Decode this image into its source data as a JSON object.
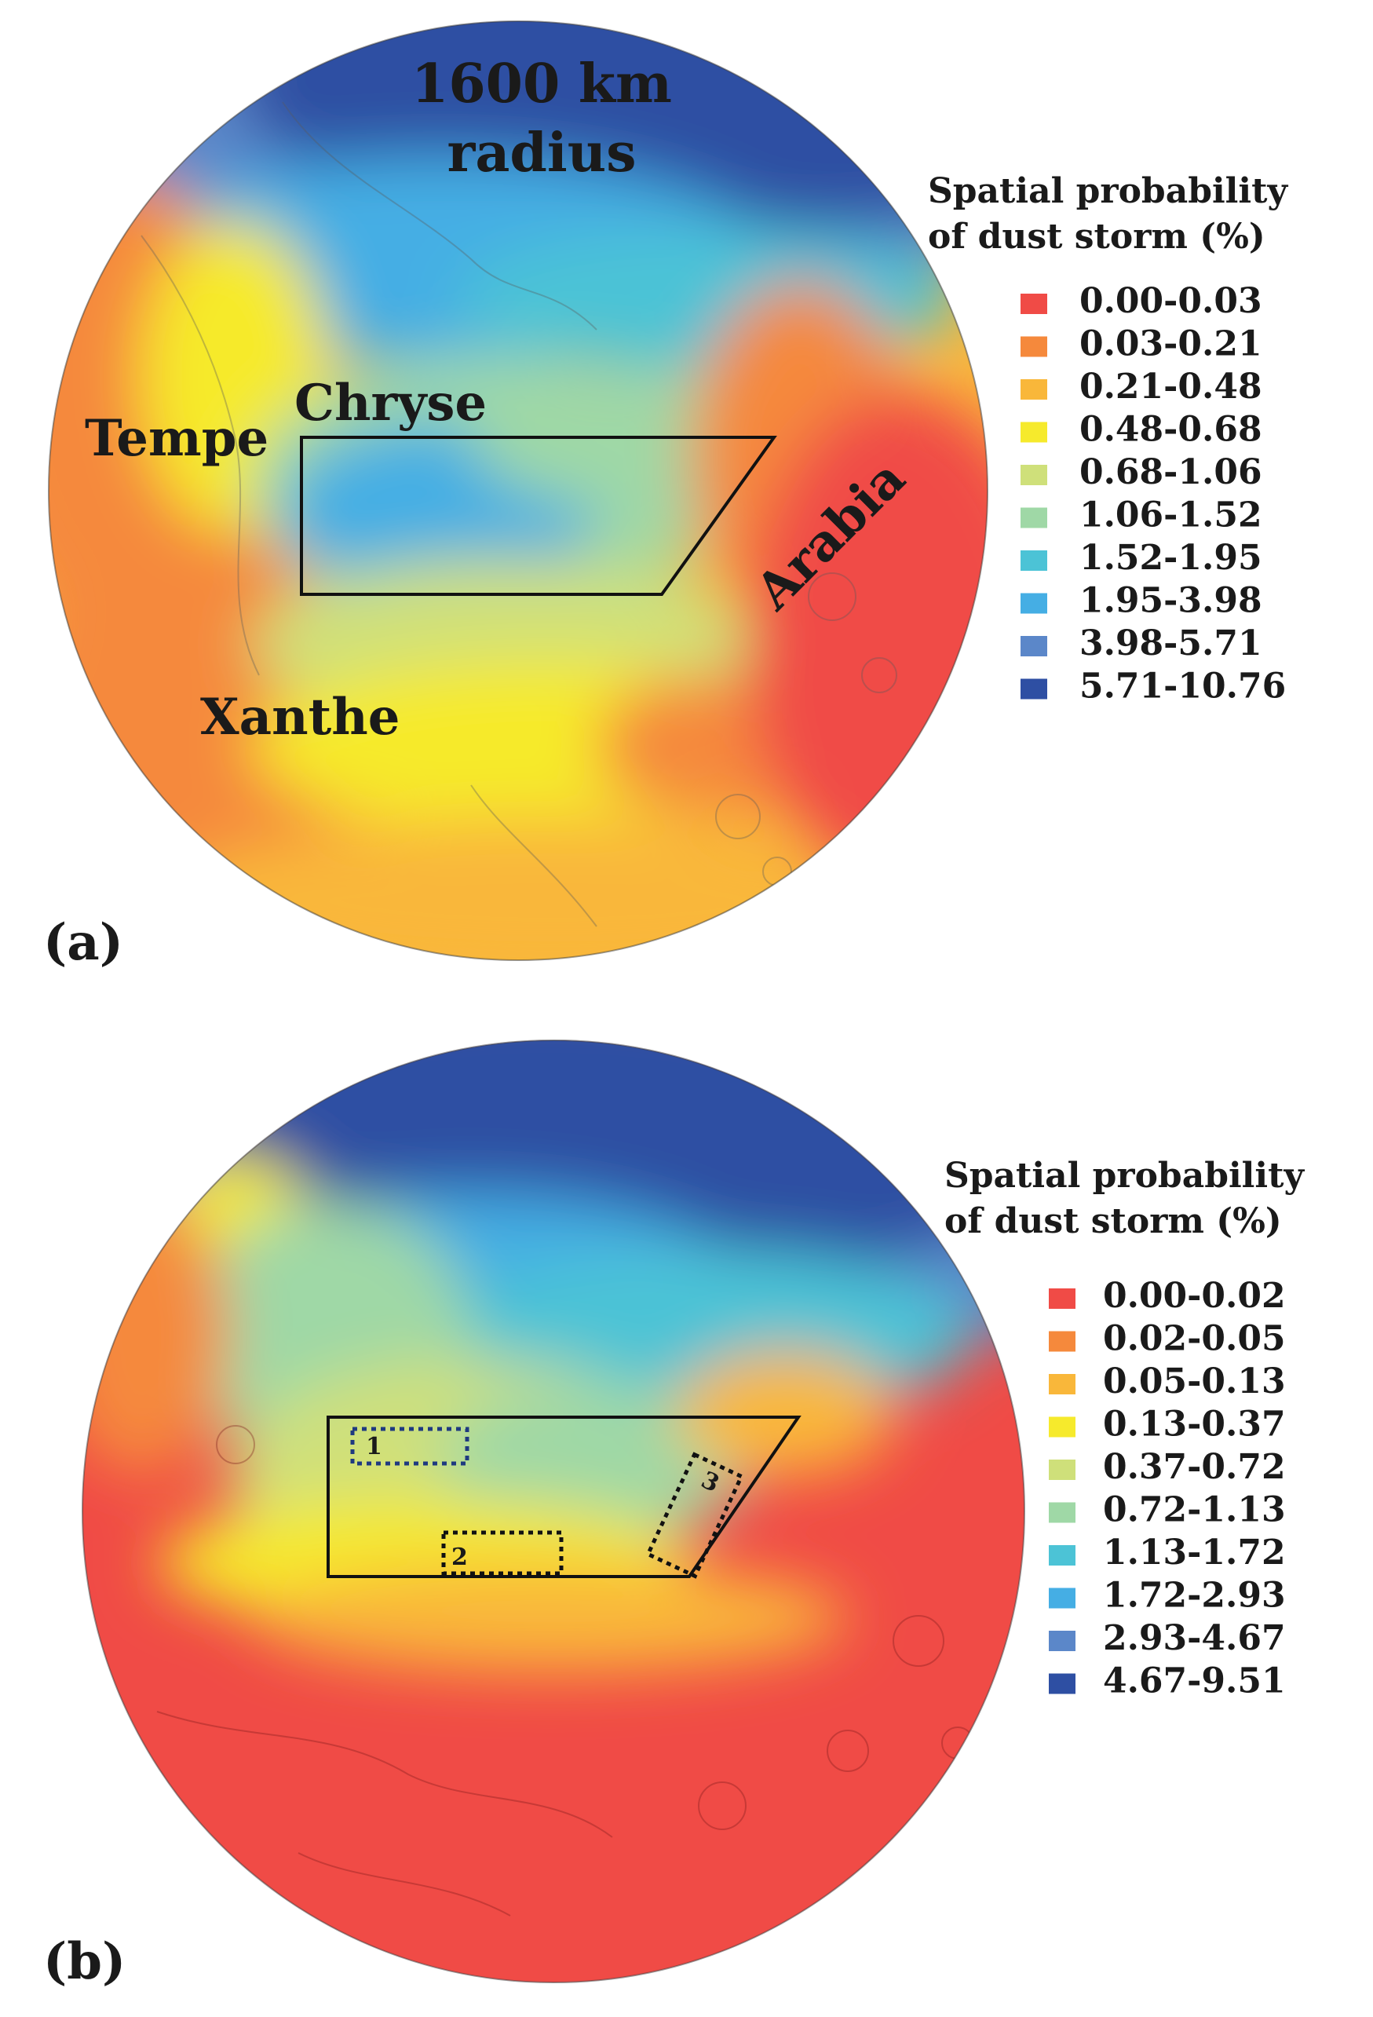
{
  "panels": [
    {
      "id": "a",
      "panel_label": "(a)",
      "radius_label_line1": "1600 km",
      "radius_label_line2": "radius",
      "regions": [
        "Tempe",
        "Chryse",
        "Arabia",
        "Xanthe"
      ],
      "legend_title_line1": "Spatial probability",
      "legend_title_line2": "of dust storm (%)",
      "legend": [
        {
          "label": "0.00-0.03",
          "color": "#f04b46"
        },
        {
          "label": "0.03-0.21",
          "color": "#f5893c"
        },
        {
          "label": "0.21-0.48",
          "color": "#f9b73a"
        },
        {
          "label": "0.48-0.68",
          "color": "#f6ea2c"
        },
        {
          "label": "0.68-1.06",
          "color": "#cfe07a"
        },
        {
          "label": "1.06-1.52",
          "color": "#9fd8a6"
        },
        {
          "label": "1.52-1.95",
          "color": "#4cc3d6"
        },
        {
          "label": "1.95-3.98",
          "color": "#45aee4"
        },
        {
          "label": "3.98-5.71",
          "color": "#5b87c9"
        },
        {
          "label": "5.71-10.76",
          "color": "#2e4fa3"
        }
      ]
    },
    {
      "id": "b",
      "panel_label": "(b)",
      "box_numbers": [
        "1",
        "2",
        "3"
      ],
      "legend_title_line1": "Spatial probability",
      "legend_title_line2": "of dust storm (%)",
      "legend": [
        {
          "label": "0.00-0.02",
          "color": "#f04b46"
        },
        {
          "label": "0.02-0.05",
          "color": "#f5893c"
        },
        {
          "label": "0.05-0.13",
          "color": "#f9b73a"
        },
        {
          "label": "0.13-0.37",
          "color": "#f6ea2c"
        },
        {
          "label": "0.37-0.72",
          "color": "#cfe07a"
        },
        {
          "label": "0.72-1.13",
          "color": "#9fd8a6"
        },
        {
          "label": "1.13-1.72",
          "color": "#4cc3d6"
        },
        {
          "label": "1.72-2.93",
          "color": "#45aee4"
        },
        {
          "label": "2.93-4.67",
          "color": "#5b87c9"
        },
        {
          "label": "4.67-9.51",
          "color": "#2e4fa3"
        }
      ]
    }
  ]
}
